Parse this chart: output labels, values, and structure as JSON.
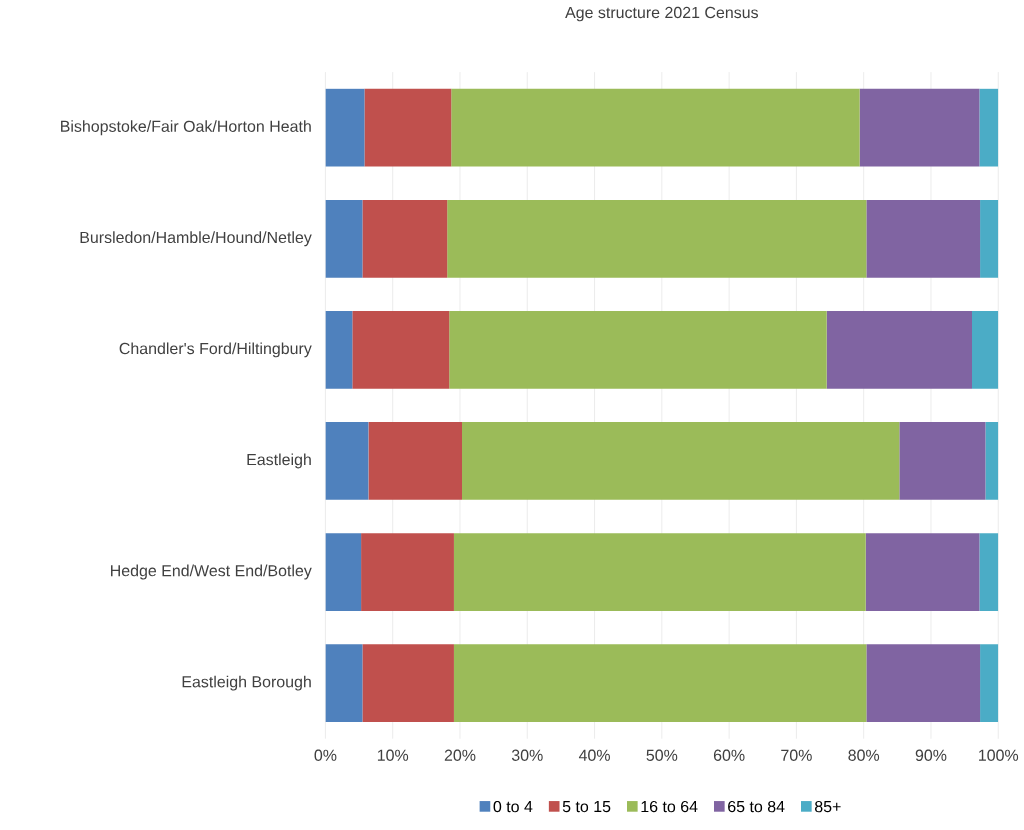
{
  "chart_data": {
    "type": "bar",
    "orientation": "horizontal",
    "stacked": true,
    "title": "Age structure 2021 Census",
    "categories": [
      "Bishopstoke/Fair Oak/Horton Heath",
      "Bursledon/Hamble/Hound/Netley",
      "Chandler's Ford/Hiltingbury",
      "Eastleigh",
      "Hedge End/West End/Botley",
      "Eastleigh Borough"
    ],
    "series": [
      {
        "name": "0 to 4",
        "color": "#4f81bd",
        "values": [
          5.8,
          5.5,
          4.0,
          6.4,
          5.3,
          5.5
        ]
      },
      {
        "name": "5 to 15",
        "color": "#c0504d",
        "values": [
          12.9,
          12.6,
          14.4,
          13.9,
          13.8,
          13.6
        ]
      },
      {
        "name": "16 to 64",
        "color": "#9bbb59",
        "values": [
          60.7,
          62.3,
          56.1,
          65.0,
          61.2,
          61.3
        ]
      },
      {
        "name": "65 to 84",
        "color": "#8064a2",
        "values": [
          17.8,
          16.9,
          21.6,
          12.8,
          16.9,
          16.9
        ]
      },
      {
        "name": "85+",
        "color": "#4bacc6",
        "values": [
          2.8,
          2.7,
          3.9,
          1.9,
          2.8,
          2.7
        ]
      }
    ],
    "xlim": [
      0,
      100
    ],
    "xticks": [
      {
        "value": 0,
        "label": "0%"
      },
      {
        "value": 10,
        "label": "10%"
      },
      {
        "value": 20,
        "label": "20%"
      },
      {
        "value": 30,
        "label": "30%"
      },
      {
        "value": 40,
        "label": "40%"
      },
      {
        "value": 50,
        "label": "50%"
      },
      {
        "value": 60,
        "label": "60%"
      },
      {
        "value": 70,
        "label": "70%"
      },
      {
        "value": 80,
        "label": "80%"
      },
      {
        "value": 90,
        "label": "90%"
      },
      {
        "value": 100,
        "label": "100%"
      }
    ],
    "grid": "x",
    "legend": "bottom"
  }
}
